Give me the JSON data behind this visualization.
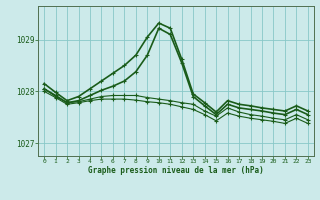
{
  "title": "Graphe pression niveau de la mer (hPa)",
  "bg_color": "#cceaea",
  "grid_color": "#88c8c8",
  "line_color": "#1a5c1a",
  "xlim": [
    -0.5,
    23.5
  ],
  "ylim": [
    1026.75,
    1029.65
  ],
  "yticks": [
    1027,
    1028,
    1029
  ],
  "xticks": [
    0,
    1,
    2,
    3,
    4,
    5,
    6,
    7,
    8,
    9,
    10,
    11,
    12,
    13,
    14,
    15,
    16,
    17,
    18,
    19,
    20,
    21,
    22,
    23
  ],
  "series": [
    {
      "x": [
        0,
        1,
        2,
        3,
        4,
        5,
        6,
        7,
        8,
        9,
        10,
        11,
        12,
        13,
        14,
        15,
        16,
        17,
        18,
        19,
        20,
        21,
        22,
        23
      ],
      "y": [
        1028.15,
        1027.98,
        1027.82,
        1027.9,
        1028.05,
        1028.2,
        1028.35,
        1028.5,
        1028.7,
        1029.05,
        1029.32,
        1029.22,
        1028.62,
        1027.95,
        1027.78,
        1027.6,
        1027.82,
        1027.75,
        1027.72,
        1027.68,
        1027.65,
        1027.62,
        1027.72,
        1027.62
      ]
    },
    {
      "x": [
        0,
        1,
        2,
        3,
        4,
        5,
        6,
        7,
        8,
        9,
        10,
        11,
        12,
        13,
        14,
        15,
        16,
        17,
        18,
        19,
        20,
        21,
        22,
        23
      ],
      "y": [
        1028.05,
        1027.92,
        1027.78,
        1027.82,
        1027.92,
        1028.02,
        1028.1,
        1028.2,
        1028.38,
        1028.7,
        1029.22,
        1029.1,
        1028.55,
        1027.9,
        1027.72,
        1027.55,
        1027.75,
        1027.68,
        1027.65,
        1027.62,
        1027.58,
        1027.55,
        1027.65,
        1027.55
      ]
    },
    {
      "x": [
        0,
        1,
        2,
        3,
        4,
        5,
        6,
        7,
        8,
        9,
        10,
        11,
        12,
        13,
        14,
        15,
        16,
        17,
        18,
        19,
        20,
        21,
        22,
        23
      ],
      "y": [
        1028.05,
        1027.9,
        1027.78,
        1027.8,
        1027.85,
        1027.9,
        1027.92,
        1027.92,
        1027.92,
        1027.88,
        1027.85,
        1027.82,
        1027.78,
        1027.75,
        1027.62,
        1027.52,
        1027.68,
        1027.6,
        1027.55,
        1027.52,
        1027.48,
        1027.45,
        1027.55,
        1027.45
      ]
    },
    {
      "x": [
        0,
        1,
        2,
        3,
        4,
        5,
        6,
        7,
        8,
        9,
        10,
        11,
        12,
        13,
        14,
        15,
        16,
        17,
        18,
        19,
        20,
        21,
        22,
        23
      ],
      "y": [
        1028.0,
        1027.88,
        1027.75,
        1027.78,
        1027.82,
        1027.85,
        1027.85,
        1027.85,
        1027.83,
        1027.8,
        1027.78,
        1027.75,
        1027.7,
        1027.65,
        1027.55,
        1027.43,
        1027.58,
        1027.52,
        1027.48,
        1027.45,
        1027.42,
        1027.38,
        1027.48,
        1027.38
      ]
    }
  ]
}
